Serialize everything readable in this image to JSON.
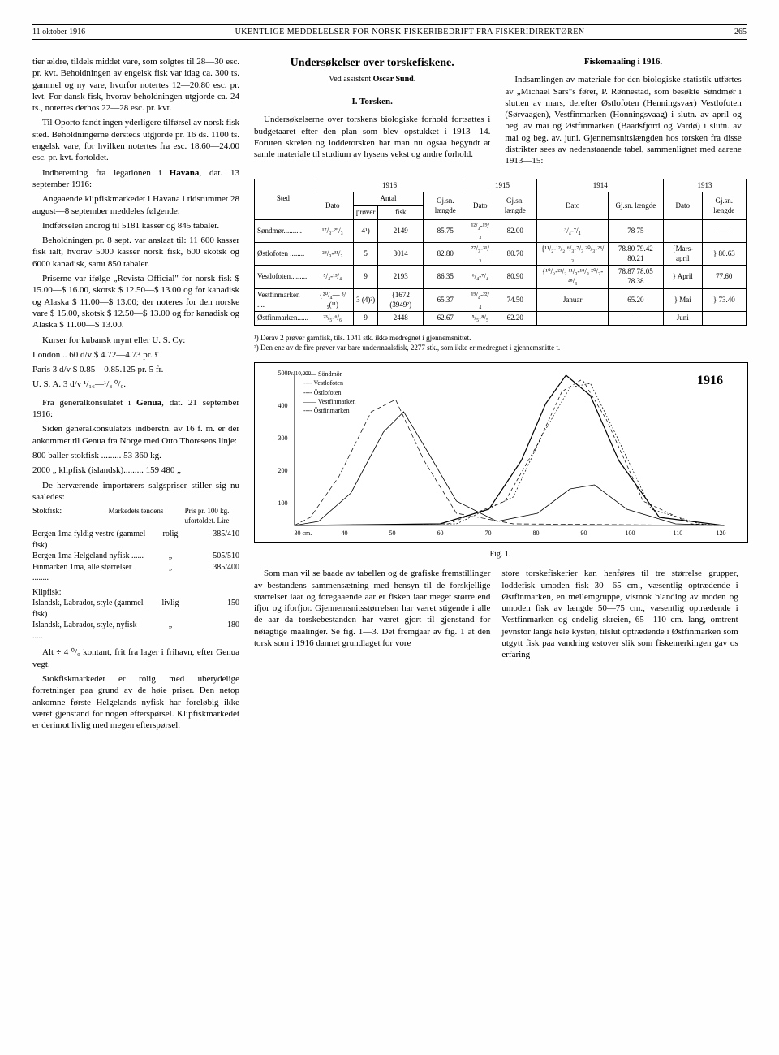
{
  "header": {
    "date": "11 oktober 1916",
    "title": "UKENTLIGE MEDDELELSER FOR NORSK FISKERIBEDRIFT FRA FISKERIDIREKTØREN",
    "page": "265"
  },
  "left_column": {
    "p1": "tier ældre, tildels middet vare, som solgtes til 28—30 esc. pr. kvt. Beholdningen av engelsk fisk var idag ca. 300 ts. gammel og ny vare, hvorfor notertes 12—20.80 esc. pr. kvt. For dansk fisk, hvorav beholdningen utgjorde ca. 24 ts., notertes derhos 22—28 esc. pr. kvt.",
    "p2": "Til Oporto fandt ingen yderligere tilførsel av norsk fisk sted. Beholdningerne dersteds utgjorde pr. 16 ds. 1100 ts. engelsk vare, for hvilken notertes fra esc. 18.60—24.00 esc. pr. kvt. fortoldet.",
    "p3_lead": "Indberetning fra legationen i ",
    "p3_bold": "Havana",
    "p3_tail": ", dat. 13 september 1916:",
    "p4": "Angaaende klipfiskmarkedet i Havana i tidsrummet 28 august—8 september meddeles følgende:",
    "p5": "Indførselen androg til 5181 kasser og 845 tabaler.",
    "p6": "Beholdningen pr. 8 sept. var anslaat til: 11 600 kasser fisk ialt, hvorav 5000 kasser norsk fisk, 600 skotsk og 6000 kanadisk, samt 850 tabaler.",
    "p7": "Priserne var ifølge „Revista Official\" for norsk fisk $ 15.00—$ 16.00, skotsk $ 12.50—$ 13.00 og for kanadisk og Alaska $ 11.00—$ 13.00; der noteres for den norske vare $ 15.00, skotsk $ 12.50—$ 13.00 og for kanadisk og Alaska $ 11.00—$ 13.00.",
    "p8": "Kurser for kubansk mynt eller U. S. Cy:",
    "p9": "London .. 60 d/v $ 4.72—4.73 pr. £",
    "p10": "Paris 3 d/v $ 0.85—0.85.125 pr. 5 fr.",
    "p11": "U. S. A. 3 d/v ¹/₁₆—¹/₈ ⁰/₀.",
    "p12_lead": "Fra generalkonsulatet i ",
    "p12_bold": "Genua",
    "p12_tail": ", dat. 21 september 1916:",
    "p13": "Siden generalkonsulatets indberetn. av 16 f. m. er der ankommet til Genua fra Norge med Otto Thoresens linje:",
    "p14": "800 baller stokfisk ......... 53 360 kg.",
    "p15": "2000    „     klipfisk (islandsk)......... 159 480  „",
    "p16": "De herværende importørers salgspriser stiller sig nu saaledes:",
    "price_head1": "Stokfisk:",
    "price_head2": "Markedets tendens",
    "price_head3": "Pris pr. 100 kg. ufortoldet. Lire",
    "prices": [
      {
        "label": "Bergen 1ma fyldig vestre (gammel fisk)",
        "tend": "rolig",
        "val": "385/410"
      },
      {
        "label": "Bergen 1ma Helgeland nyfisk ......",
        "tend": "„",
        "val": "505/510"
      },
      {
        "label": "Finmarken 1ma, alle størrelser ........",
        "tend": "„",
        "val": "385/400"
      }
    ],
    "klip_head": "Klipfisk:",
    "klip": [
      {
        "label": "Islandsk, Labrador, style (gammel fisk)",
        "tend": "livlig",
        "val": "150"
      },
      {
        "label": "Islandsk, Labrador, style, nyfisk .....",
        "tend": "„",
        "val": "180"
      }
    ],
    "p17": "Alt ÷ 4 ⁰/₀ kontant, frit fra lager i frihavn, efter Genua vegt.",
    "p18": "Stokfiskmarkedet er rolig med ubetydelige forretninger paa grund av de høie priser. Den netop ankomne første Helgelands nyfisk har foreløbig ikke været gjenstand for nogen efterspørsel. Klipfiskmarkedet er derimot livlig med megen efterspørsel."
  },
  "right_column": {
    "title1": "Undersøkelser over torskefiskene.",
    "byline": "Ved assistent Oscar Sund.",
    "sect": "I.   Torsken.",
    "head2": "Fiskemaaling i 1916.",
    "body1": "Undersøkelserne over torskens biologiske forhold fortsattes i budgetaaret efter den plan som blev opstukket i 1913—14. Foruten skreien og loddetorsken har man nu ogsaa begyndt at samle materiale til studium av hysens vekst og andre forhold.",
    "body2": "Indsamlingen av materiale for den biologiske statistik utførtes av „Michael Sars\"s fører, P. Rønnestad, som besøkte Søndmør i slutten av mars, derefter Østlofoten (Henningsvær) Vestlofoten (Sørvaagen), Vestfinmarken (Honningsvaag) i slutn. av april og beg. av mai og Østfinmarken (Baadsfjord og Vardø) i slutn. av mai og beg. av. juni. Gjennemsnitslængden hos torsken fra disse distrikter sees av nedenstaaende tabel, sammenlignet med aarene 1913—15:",
    "table": {
      "header_years": [
        "1916",
        "1915",
        "1914",
        "1913"
      ],
      "col_sted": "Sted",
      "col_dato": "Dato",
      "col_antal": "Antal",
      "col_prover": "prøver",
      "col_fisk": "fisk",
      "col_gjsn": "Gj.sn. længde",
      "rows": [
        {
          "sted": "Søndmør..........",
          "d16": "¹⁷/₃-²⁹/₃",
          "p16": "4¹)",
          "f16": "2149",
          "g16": "85.75",
          "d15": "¹²/₃-¹⁹/₃",
          "g15": "82.00",
          "d14": "³/₄-⁷/₄",
          "g14": "78 75",
          "d13": "",
          "g13": "—"
        },
        {
          "sted": "Østlofoten ........",
          "d16": "²⁸/₃-³¹/₃",
          "p16": "5",
          "f16": "3014",
          "g16": "82.80",
          "d15": "²⁷/₃-³¹/₃",
          "g15": "80.70",
          "d14": "{¹¹/₂-¹²/₂ ⁶/₃-⁷/₃ ²⁰/₃-²³/₃",
          "g14": "78.80 79.42 80.21",
          "d13": "{Mars-april",
          "g13": "} 80.63"
        },
        {
          "sted": "Vestlofoten.........",
          "d16": "⁵/₄-¹³/₄",
          "p16": "9",
          "f16": "2193",
          "g16": "86.35",
          "d15": "⁶/₄-⁷/₄",
          "g15": "80.90",
          "d14": "{¹⁰/₂-²¹/₂ ¹¹/₃-¹⁸/₃ ²⁰/₃-²⁸/₃",
          "g14": "78.87 78.05 78.38",
          "d13": "} April",
          "g13": "77.60"
        },
        {
          "sted": "Vestfinmarken ....",
          "d16": "{²⁰/₄— ³/₅(¹¹)",
          "p16": "3 (4)²)",
          "f16": "{1672 (3949²)",
          "g16": "65.37",
          "d15": "¹⁹/₄-²²/₄",
          "g15": "74.50",
          "d14": "Januar",
          "g14": "65.20",
          "d13": "} Mai",
          "g13": "} 73.40"
        },
        {
          "sted": "Østfinmarken......",
          "d16": "²³/₅-⁶/₆",
          "p16": "9",
          "f16": "2448",
          "g16": "62.67",
          "d15": "⁵/₅-⁸/₅",
          "g15": "62.20",
          "d14": "—",
          "g14": "—",
          "d13": "Juni",
          "g13": ""
        }
      ]
    },
    "footnote1": "¹) Derav 2 prøver garnfisk, tils. 1041 stk. ikke medregnet i gjennemsnittet.",
    "footnote2": "²) Den ene av de fire prøver var bare undermaalsfisk, 2277 stk., som ikke er medregnet i gjennemsnitte t.",
    "chart": {
      "year": "1916",
      "y_label": "Pr. 10,000",
      "y_ticks": [
        "500",
        "400",
        "300",
        "200",
        "100"
      ],
      "x_label_vals": [
        "30 cm.",
        "40",
        "50",
        "60",
        "70",
        "80",
        "90",
        "100",
        "110",
        "120"
      ],
      "legend": [
        "—— Söndmör",
        "---- Vestlofoten",
        "---- Östlofoten",
        "—— Vestfinmarken",
        "---- Östfinmarken"
      ],
      "caption": "Fig. 1."
    },
    "body3": "Som man vil se baade av tabellen og de grafiske fremstillinger av bestandens sammensætning med hensyn til de forskjellige størrelser iaar og foregaaende aar er fisken iaar meget større end ifjor og iforfjor. Gjennemsnitsstørrelsen har været stigende i alle de aar da torskebestanden har været gjort til gjenstand for nøiagtige maalinger. Se fig. 1—3. Det fremgaar av fig. 1 at den torsk som i 1916 dannet grundlaget for vore",
    "body4": "store torskefiskerier kan henføres til tre størrelse grupper, loddefisk umoden fisk 30—65 cm., væsentlig optrædende i Østfinmarken, en mellemgruppe, vistnok blanding av moden og umoden fisk av længde 50—75 cm., væsentlig optrædende i Vestfinmarken og endelig skreien, 65—110 cm. lang, omtrent jevnstor langs hele kysten, tilslut optrædende i Østfinmarken som utgytt fisk paa vandring østover slik som fiskemerkingen gav os erfaring"
  }
}
